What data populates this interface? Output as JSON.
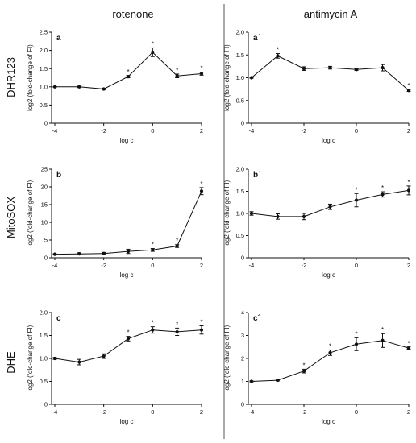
{
  "column_titles": [
    "rotenone",
    "antimycin A"
  ],
  "row_titles": [
    "DHR123",
    "MitoSOX",
    "DHE"
  ],
  "chart_data": [
    {
      "type": "line",
      "panel": "a",
      "row": 0,
      "col": 0,
      "xlabel": "log c",
      "ylabel": "log2 (fold-change of FI)",
      "xlim": [
        -4,
        2
      ],
      "ylim": [
        0,
        2.5
      ],
      "xticks": [
        -4,
        -2,
        0,
        2
      ],
      "yticks": [
        0,
        0.5,
        1.0,
        1.5,
        2.0,
        2.5
      ],
      "ytick_labels": [
        "0",
        "0.5",
        "1.0",
        "1.5",
        "2.0",
        "2.5"
      ],
      "x": [
        -4,
        -3,
        -2,
        -1,
        0,
        1,
        2
      ],
      "y": [
        1.0,
        1.0,
        0.94,
        1.28,
        1.95,
        1.3,
        1.36
      ],
      "err": [
        0.01,
        0.02,
        0.02,
        0.03,
        0.12,
        0.05,
        0.04
      ],
      "significant": [
        false,
        false,
        false,
        true,
        true,
        true,
        true
      ],
      "significance_marker": "*"
    },
    {
      "type": "line",
      "panel": "a´",
      "row": 0,
      "col": 1,
      "xlabel": "log c",
      "ylabel": "log2 (fold-change of FI)",
      "xlim": [
        -4,
        2
      ],
      "ylim": [
        0,
        2.0
      ],
      "xticks": [
        -4,
        -2,
        0,
        2
      ],
      "yticks": [
        0,
        0.5,
        1.0,
        1.5,
        2.0
      ],
      "ytick_labels": [
        "0",
        "0.5",
        "1.0",
        "1.5",
        "2.0"
      ],
      "x": [
        -4,
        -3,
        -2,
        -1,
        0,
        1,
        2
      ],
      "y": [
        1.0,
        1.48,
        1.2,
        1.22,
        1.18,
        1.22,
        0.72
      ],
      "err": [
        0.01,
        0.05,
        0.04,
        0.03,
        0.02,
        0.07,
        0.02
      ],
      "significant": [
        false,
        true,
        false,
        false,
        false,
        false,
        true
      ],
      "significance_marker": "*"
    },
    {
      "type": "line",
      "panel": "b",
      "row": 1,
      "col": 0,
      "xlabel": "log c",
      "ylabel": "log2 (fold-change of FI)",
      "xlim": [
        -4,
        2
      ],
      "ylim": [
        0,
        25
      ],
      "xticks": [
        -4,
        -2,
        0,
        2
      ],
      "yticks": [
        0,
        5,
        10,
        15,
        20,
        25
      ],
      "ytick_labels": [
        "0",
        "5",
        "10",
        "15",
        "20",
        "25"
      ],
      "x": [
        -4,
        -3,
        -2,
        -1,
        0,
        1,
        2
      ],
      "y": [
        1.0,
        1.1,
        1.2,
        1.8,
        2.2,
        3.3,
        18.8
      ],
      "err": [
        0.1,
        0.3,
        0.3,
        0.6,
        0.4,
        0.4,
        1.0
      ],
      "significant": [
        false,
        false,
        false,
        false,
        true,
        true,
        true
      ],
      "significance_marker": "*"
    },
    {
      "type": "line",
      "panel": "b´",
      "row": 1,
      "col": 1,
      "xlabel": "log c",
      "ylabel": "log2 (fold-change of FI)",
      "xlim": [
        -4,
        2
      ],
      "ylim": [
        0,
        2.0
      ],
      "xticks": [
        -4,
        -2,
        0,
        2
      ],
      "yticks": [
        0,
        0.5,
        1.0,
        1.5,
        2.0
      ],
      "ytick_labels": [
        "0",
        "0.5",
        "1.0",
        "1.5",
        "2.0"
      ],
      "x": [
        -4,
        -3,
        -2,
        -1,
        0,
        1,
        2
      ],
      "y": [
        1.0,
        0.93,
        0.93,
        1.15,
        1.3,
        1.43,
        1.52
      ],
      "err": [
        0.04,
        0.06,
        0.07,
        0.06,
        0.15,
        0.06,
        0.1
      ],
      "significant": [
        false,
        false,
        false,
        false,
        true,
        true,
        true
      ],
      "significance_marker": "*"
    },
    {
      "type": "line",
      "panel": "c",
      "row": 2,
      "col": 0,
      "xlabel": "log c",
      "ylabel": "log2 (fold-change of FI)",
      "xlim": [
        -4,
        2
      ],
      "ylim": [
        0,
        2.0
      ],
      "xticks": [
        -4,
        -2,
        0,
        2
      ],
      "yticks": [
        0,
        0.5,
        1.0,
        1.5,
        2.0
      ],
      "ytick_labels": [
        "0",
        "0.5",
        "1.0",
        "1.5",
        "2.0"
      ],
      "x": [
        -4,
        -3,
        -2,
        -1,
        0,
        1,
        2
      ],
      "y": [
        1.0,
        0.92,
        1.05,
        1.43,
        1.62,
        1.58,
        1.62
      ],
      "err": [
        0.02,
        0.06,
        0.05,
        0.05,
        0.07,
        0.08,
        0.09
      ],
      "significant": [
        false,
        false,
        false,
        true,
        true,
        true,
        true
      ],
      "significance_marker": "*"
    },
    {
      "type": "line",
      "panel": "c´",
      "row": 2,
      "col": 1,
      "xlabel": "log c",
      "ylabel": "log2 (fold-change of FI)",
      "xlim": [
        -4,
        2
      ],
      "ylim": [
        0,
        4
      ],
      "xticks": [
        -4,
        -2,
        0,
        2
      ],
      "yticks": [
        0,
        1,
        2,
        3,
        4
      ],
      "ytick_labels": [
        "0",
        "1",
        "2",
        "3",
        "4"
      ],
      "x": [
        -4,
        -3,
        -2,
        -1,
        0,
        1,
        2
      ],
      "y": [
        1.0,
        1.05,
        1.45,
        2.25,
        2.62,
        2.78,
        2.45
      ],
      "err": [
        0.02,
        0.03,
        0.08,
        0.12,
        0.28,
        0.3,
        0.05
      ],
      "significant": [
        false,
        false,
        true,
        true,
        true,
        true,
        true
      ],
      "significance_marker": "*"
    }
  ]
}
